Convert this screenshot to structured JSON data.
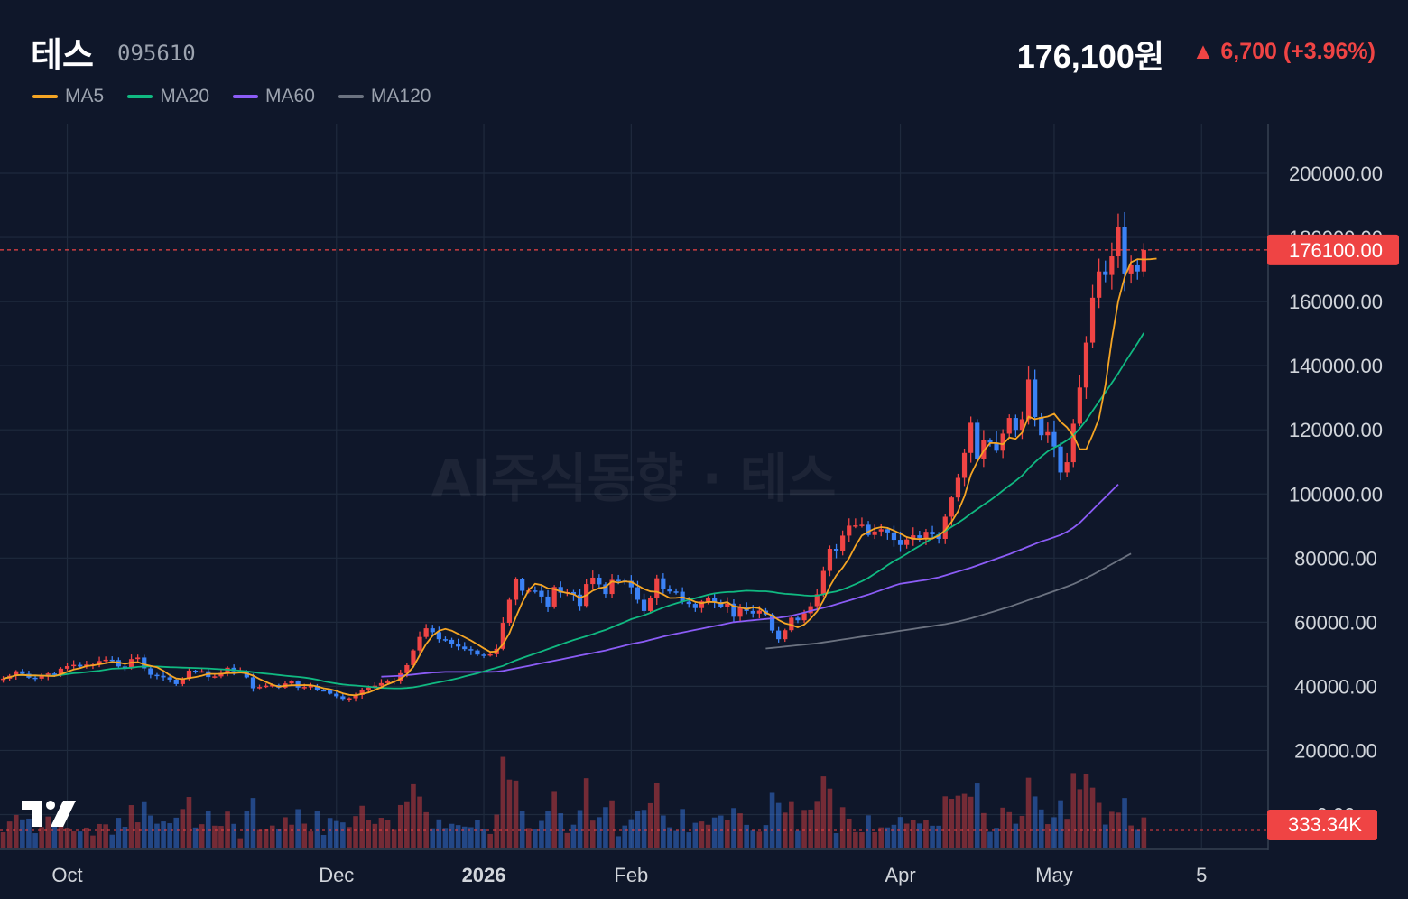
{
  "header": {
    "name": "테스",
    "code": "095610",
    "price": "176,100원",
    "change": "▲ 6,700 (+3.96%)"
  },
  "legend": [
    {
      "label": "MA5",
      "color": "#f5a524"
    },
    {
      "label": "MA20",
      "color": "#10b981"
    },
    {
      "label": "MA60",
      "color": "#8b5cf6"
    },
    {
      "label": "MA120",
      "color": "#6b7280"
    }
  ],
  "watermark": "AI주식동향 · 테스",
  "chart_data": {
    "type": "candlestick",
    "x_labels": [
      {
        "label": "Oct",
        "index": 10,
        "bold": false
      },
      {
        "label": "Dec",
        "index": 52,
        "bold": false
      },
      {
        "label": "2026",
        "index": 75,
        "bold": true
      },
      {
        "label": "Feb",
        "index": 98,
        "bold": false
      },
      {
        "label": "Apr",
        "index": 140,
        "bold": false
      },
      {
        "label": "May",
        "index": 164,
        "bold": false
      },
      {
        "label": "5",
        "index": 187,
        "bold": false
      }
    ],
    "y_ticks": [
      "200000.00",
      "180000.00",
      "160000.00",
      "140000.00",
      "120000.00",
      "100000.00",
      "80000.00",
      "60000.00",
      "40000.00",
      "20000.00",
      "0.00"
    ],
    "ylim": [
      0,
      200000
    ],
    "last_price_label": "176100.00",
    "last_price": 176100,
    "volume_label": "333.34K",
    "volume_last": 333340,
    "volume_max": 2500000,
    "up_color": "#ef4444",
    "down_color": "#3b82f6",
    "close": [
      42400,
      43300,
      44700,
      43900,
      42700,
      42400,
      43200,
      44000,
      43700,
      45500,
      46300,
      46700,
      46200,
      46800,
      46800,
      47900,
      48300,
      48200,
      46200,
      45900,
      48500,
      49000,
      45600,
      43600,
      43300,
      42800,
      42100,
      40700,
      42400,
      44900,
      44600,
      44700,
      42900,
      43100,
      44200,
      45800,
      44700,
      44700,
      42800,
      39400,
      39800,
      40200,
      40400,
      39600,
      40900,
      41600,
      39600,
      39800,
      40100,
      38800,
      38700,
      37700,
      36900,
      36100,
      36300,
      37300,
      38900,
      39600,
      40200,
      41000,
      41500,
      41800,
      44100,
      46600,
      51200,
      55400,
      58100,
      56900,
      54700,
      54500,
      53300,
      52400,
      51600,
      51200,
      49900,
      49600,
      50000,
      51700,
      59800,
      67000,
      73400,
      69800,
      69900,
      69800,
      68000,
      64900,
      71000,
      69200,
      69400,
      68600,
      65100,
      71900,
      73900,
      71800,
      68800,
      73200,
      73000,
      72900,
      70900,
      67000,
      63500,
      67500,
      73700,
      70300,
      69600,
      69500,
      66400,
      65700,
      64400,
      66500,
      67600,
      66300,
      64700,
      65800,
      61700,
      64800,
      63500,
      62700,
      63600,
      62400,
      57400,
      54700,
      57500,
      61400,
      60600,
      62800,
      65000,
      68700,
      76000,
      82900,
      82200,
      87000,
      90100,
      90200,
      90400,
      87200,
      88300,
      89000,
      88000,
      85700,
      84100,
      85800,
      87100,
      86300,
      88200,
      87400,
      86000,
      92900,
      98900,
      105000,
      112800,
      122200,
      110900,
      116700,
      116000,
      113500,
      118800,
      123700,
      120000,
      123300,
      135700,
      124000,
      118300,
      119300,
      114800,
      106700,
      109900,
      121900,
      133200,
      147200,
      161200,
      169400,
      168300,
      174100,
      183200,
      168500,
      171300,
      169400,
      176100
    ],
    "ma5": [
      42400,
      42850,
      43467,
      43575,
      43400,
      43400,
      43340,
      43240,
      43200,
      43760,
      44540,
      45240,
      45680,
      46300,
      46560,
      46880,
      47200,
      47600,
      47460,
      47020,
      47420,
      47560,
      46840,
      46360,
      45980,
      44860,
      43480,
      42460,
      42260,
      42580,
      42900,
      43320,
      43900,
      43880,
      43900,
      44140,
      44140,
      44300,
      44060,
      43360,
      42280,
      41380,
      40520,
      39880,
      40180,
      40340,
      40340,
      40400,
      40360,
      39960,
      39400,
      39100,
      38560,
      37840,
      37340,
      37220,
      37640,
      38080,
      38860,
      39680,
      40640,
      41420,
      42340,
      43800,
      46040,
      49700,
      53160,
      55800,
      57300,
      57900,
      57380,
      56360,
      55300,
      54260,
      53080,
      51860,
      50740,
      50860,
      53160,
      56560,
      61540,
      66120,
      70040,
      72000,
      71620,
      70580,
      70340,
      69560,
      69100,
      68740,
      67600,
      68400,
      69860,
      70620,
      71000,
      72700,
      72340,
      72740,
      72540,
      71500,
      70360,
      69600,
      69500,
      68660,
      67560,
      67600,
      67780,
      67200,
      66380,
      65940,
      66340,
      66300,
      65900,
      66260,
      64980,
      64680,
      64060,
      64640,
      64360,
      62960,
      62060,
      60700,
      59640,
      59160,
      58420,
      59260,
      61080,
      63360,
      66800,
      71160,
      74580,
      77000,
      80000,
      83800,
      87040,
      88200,
      89200,
      89660,
      89400,
      88580,
      87620,
      86560,
      86060,
      85940,
      86120,
      86080,
      87000,
      88740,
      91300,
      94580,
      99220,
      105960,
      110100,
      113400,
      115860,
      115860,
      115480,
      117600,
      117160,
      119140,
      124120,
      123320,
      123740,
      124140,
      124980,
      122520,
      120800,
      118120,
      114000,
      113980,
      118400,
      123480,
      134000,
      148060,
      160140,
      167560,
      172260,
      173240,
      173120,
      173200,
      173400
    ],
    "ma20": [
      42400,
      42850,
      43467,
      43575,
      43400,
      43400,
      43350,
      43300,
      43300,
      43550,
      43840,
      44080,
      44260,
      44440,
      44640,
      44880,
      45180,
      45480,
      45580,
      45660,
      45800,
      46060,
      46180,
      46180,
      46180,
      46080,
      45980,
      45900,
      45820,
      45780,
      45720,
      45640,
      45560,
      45440,
      45320,
      45200,
      45060,
      44860,
      44660,
      44420,
      44180,
      43960,
      43780,
      43560,
      43320,
      43120,
      42960,
      42720,
      42440,
      42080,
      41600,
      41200,
      40880,
      40600,
      40400,
      40240,
      40080,
      39880,
      39680,
      39520,
      39440,
      39380,
      39380,
      39500,
      39680,
      40040,
      40460,
      40880,
      41280,
      41660,
      42080,
      42540,
      43100,
      43600,
      44060,
      44660,
      45260,
      45800,
      46380,
      47260,
      48120,
      48840,
      49540,
      50220,
      50900,
      51620,
      52340,
      53060,
      53760,
      54440,
      55020,
      55620,
      56260,
      56980,
      57600,
      58420,
      59260,
      60080,
      60940,
      61560,
      62140,
      62900,
      63780,
      64540,
      65260,
      65880,
      66460,
      67000,
      67460,
      68000,
      68560,
      68980,
      69260,
      69420,
      69480,
      69680,
      69840,
      69780,
      69660,
      69660,
      69440,
      69100,
      68860,
      68740,
      68560,
      68380,
      68240,
      68300,
      68700,
      69240,
      69600,
      70220,
      71020,
      71860,
      72800,
      73800,
      75140,
      76400,
      77760,
      79040,
      80120,
      81320,
      82620,
      83760,
      85020,
      86200,
      87260,
      88420,
      89740,
      91000,
      92340,
      93860,
      95260,
      96660,
      98000,
      99440,
      101060,
      102600,
      104060,
      105740,
      107900,
      109860,
      111660,
      113260,
      114460,
      115460,
      116720,
      118300,
      120400,
      122980,
      125900,
      128820,
      131700,
      134640,
      137600,
      140800,
      143940,
      147000,
      150200
    ],
    "ma60": [
      null,
      null,
      null,
      null,
      null,
      null,
      null,
      null,
      null,
      null,
      null,
      null,
      null,
      null,
      null,
      null,
      null,
      null,
      null,
      null,
      null,
      null,
      null,
      null,
      null,
      null,
      null,
      null,
      null,
      null,
      null,
      null,
      null,
      null,
      null,
      null,
      null,
      null,
      null,
      null,
      null,
      null,
      null,
      null,
      null,
      null,
      null,
      null,
      null,
      null,
      null,
      null,
      null,
      null,
      null,
      null,
      null,
      null,
      null,
      43000,
      43100,
      43200,
      43300,
      43500,
      43700,
      43900,
      44100,
      44300,
      44400,
      44500,
      44500,
      44500,
      44500,
      44500,
      44500,
      44500,
      44500,
      44600,
      44800,
      45200,
      45600,
      46000,
      46400,
      46800,
      47200,
      47600,
      48000,
      48400,
      48800,
      49200,
      49600,
      50000,
      50400,
      50800,
      51200,
      51700,
      52200,
      52700,
      53200,
      53600,
      54000,
      54500,
      55000,
      55500,
      56000,
      56400,
      56800,
      57200,
      57600,
      58000,
      58400,
      58800,
      59200,
      59600,
      60000,
      60200,
      60400,
      60600,
      60800,
      61000,
      61200,
      61400,
      61700,
      62000,
      62500,
      63000,
      63500,
      64000,
      64500,
      65000,
      65600,
      66200,
      66800,
      67400,
      68000,
      68600,
      69300,
      70000,
      70700,
      71400,
      72000,
      72300,
      72600,
      72900,
      73200,
      73600,
      74000,
      74600,
      75200,
      75800,
      76400,
      77000,
      77700,
      78400,
      79100,
      79800,
      80500,
      81200,
      82000,
      82800,
      83600,
      84400,
      85200,
      85800,
      86500,
      87200,
      88200,
      89500,
      91000,
      93000,
      95000,
      97000,
      99000,
      101000,
      103000
    ],
    "ma120": [
      null,
      null,
      null,
      null,
      null,
      null,
      null,
      null,
      null,
      null,
      null,
      null,
      null,
      null,
      null,
      null,
      null,
      null,
      null,
      null,
      null,
      null,
      null,
      null,
      null,
      null,
      null,
      null,
      null,
      null,
      null,
      null,
      null,
      null,
      null,
      null,
      null,
      null,
      null,
      null,
      null,
      null,
      null,
      null,
      null,
      null,
      null,
      null,
      null,
      null,
      null,
      null,
      null,
      null,
      null,
      null,
      null,
      null,
      null,
      null,
      null,
      null,
      null,
      null,
      null,
      null,
      null,
      null,
      null,
      null,
      null,
      null,
      null,
      null,
      null,
      null,
      null,
      null,
      null,
      null,
      null,
      null,
      null,
      null,
      null,
      null,
      null,
      null,
      null,
      null,
      null,
      null,
      null,
      null,
      null,
      null,
      null,
      null,
      null,
      null,
      null,
      null,
      null,
      null,
      null,
      null,
      null,
      null,
      null,
      null,
      null,
      null,
      null,
      null,
      null,
      null,
      null,
      null,
      null,
      51800,
      52000,
      52200,
      52400,
      52600,
      52800,
      53000,
      53200,
      53400,
      53700,
      54000,
      54300,
      54600,
      54900,
      55200,
      55500,
      55800,
      56100,
      56400,
      56700,
      57000,
      57300,
      57600,
      57900,
      58200,
      58500,
      58800,
      59100,
      59400,
      59800,
      60200,
      60700,
      61200,
      61800,
      62400,
      63000,
      63600,
      64200,
      64800,
      65500,
      66200,
      66900,
      67600,
      68300,
      69000,
      69700,
      70400,
      71100,
      71900,
      72800,
      73800,
      74800,
      75900,
      77000,
      78100,
      79200,
      80300,
      81400
    ]
  }
}
